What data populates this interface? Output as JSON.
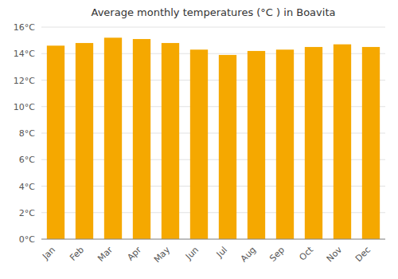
{
  "chart_data": {
    "type": "bar",
    "title": "Average monthly temperatures (°C ) in Boavita",
    "categories": [
      "Jan",
      "Feb",
      "Mar",
      "Apr",
      "May",
      "Jun",
      "Jul",
      "Aug",
      "Sep",
      "Oct",
      "Nov",
      "Dec"
    ],
    "values": [
      14.6,
      14.8,
      15.2,
      15.1,
      14.8,
      14.3,
      13.9,
      14.2,
      14.3,
      14.5,
      14.7,
      14.5
    ],
    "color": "#F5A800",
    "ylim": [
      0,
      16
    ],
    "yticks": [
      {
        "value": 0,
        "label": "0°C"
      },
      {
        "value": 2,
        "label": "2°C"
      },
      {
        "value": 4,
        "label": "4°C"
      },
      {
        "value": 6,
        "label": "6°C"
      },
      {
        "value": 8,
        "label": "8°C"
      },
      {
        "value": 10,
        "label": "10°C"
      },
      {
        "value": 12,
        "label": "12°C"
      },
      {
        "value": 14,
        "label": "14°C"
      },
      {
        "value": 16,
        "label": "16°C"
      }
    ],
    "grid": true
  }
}
